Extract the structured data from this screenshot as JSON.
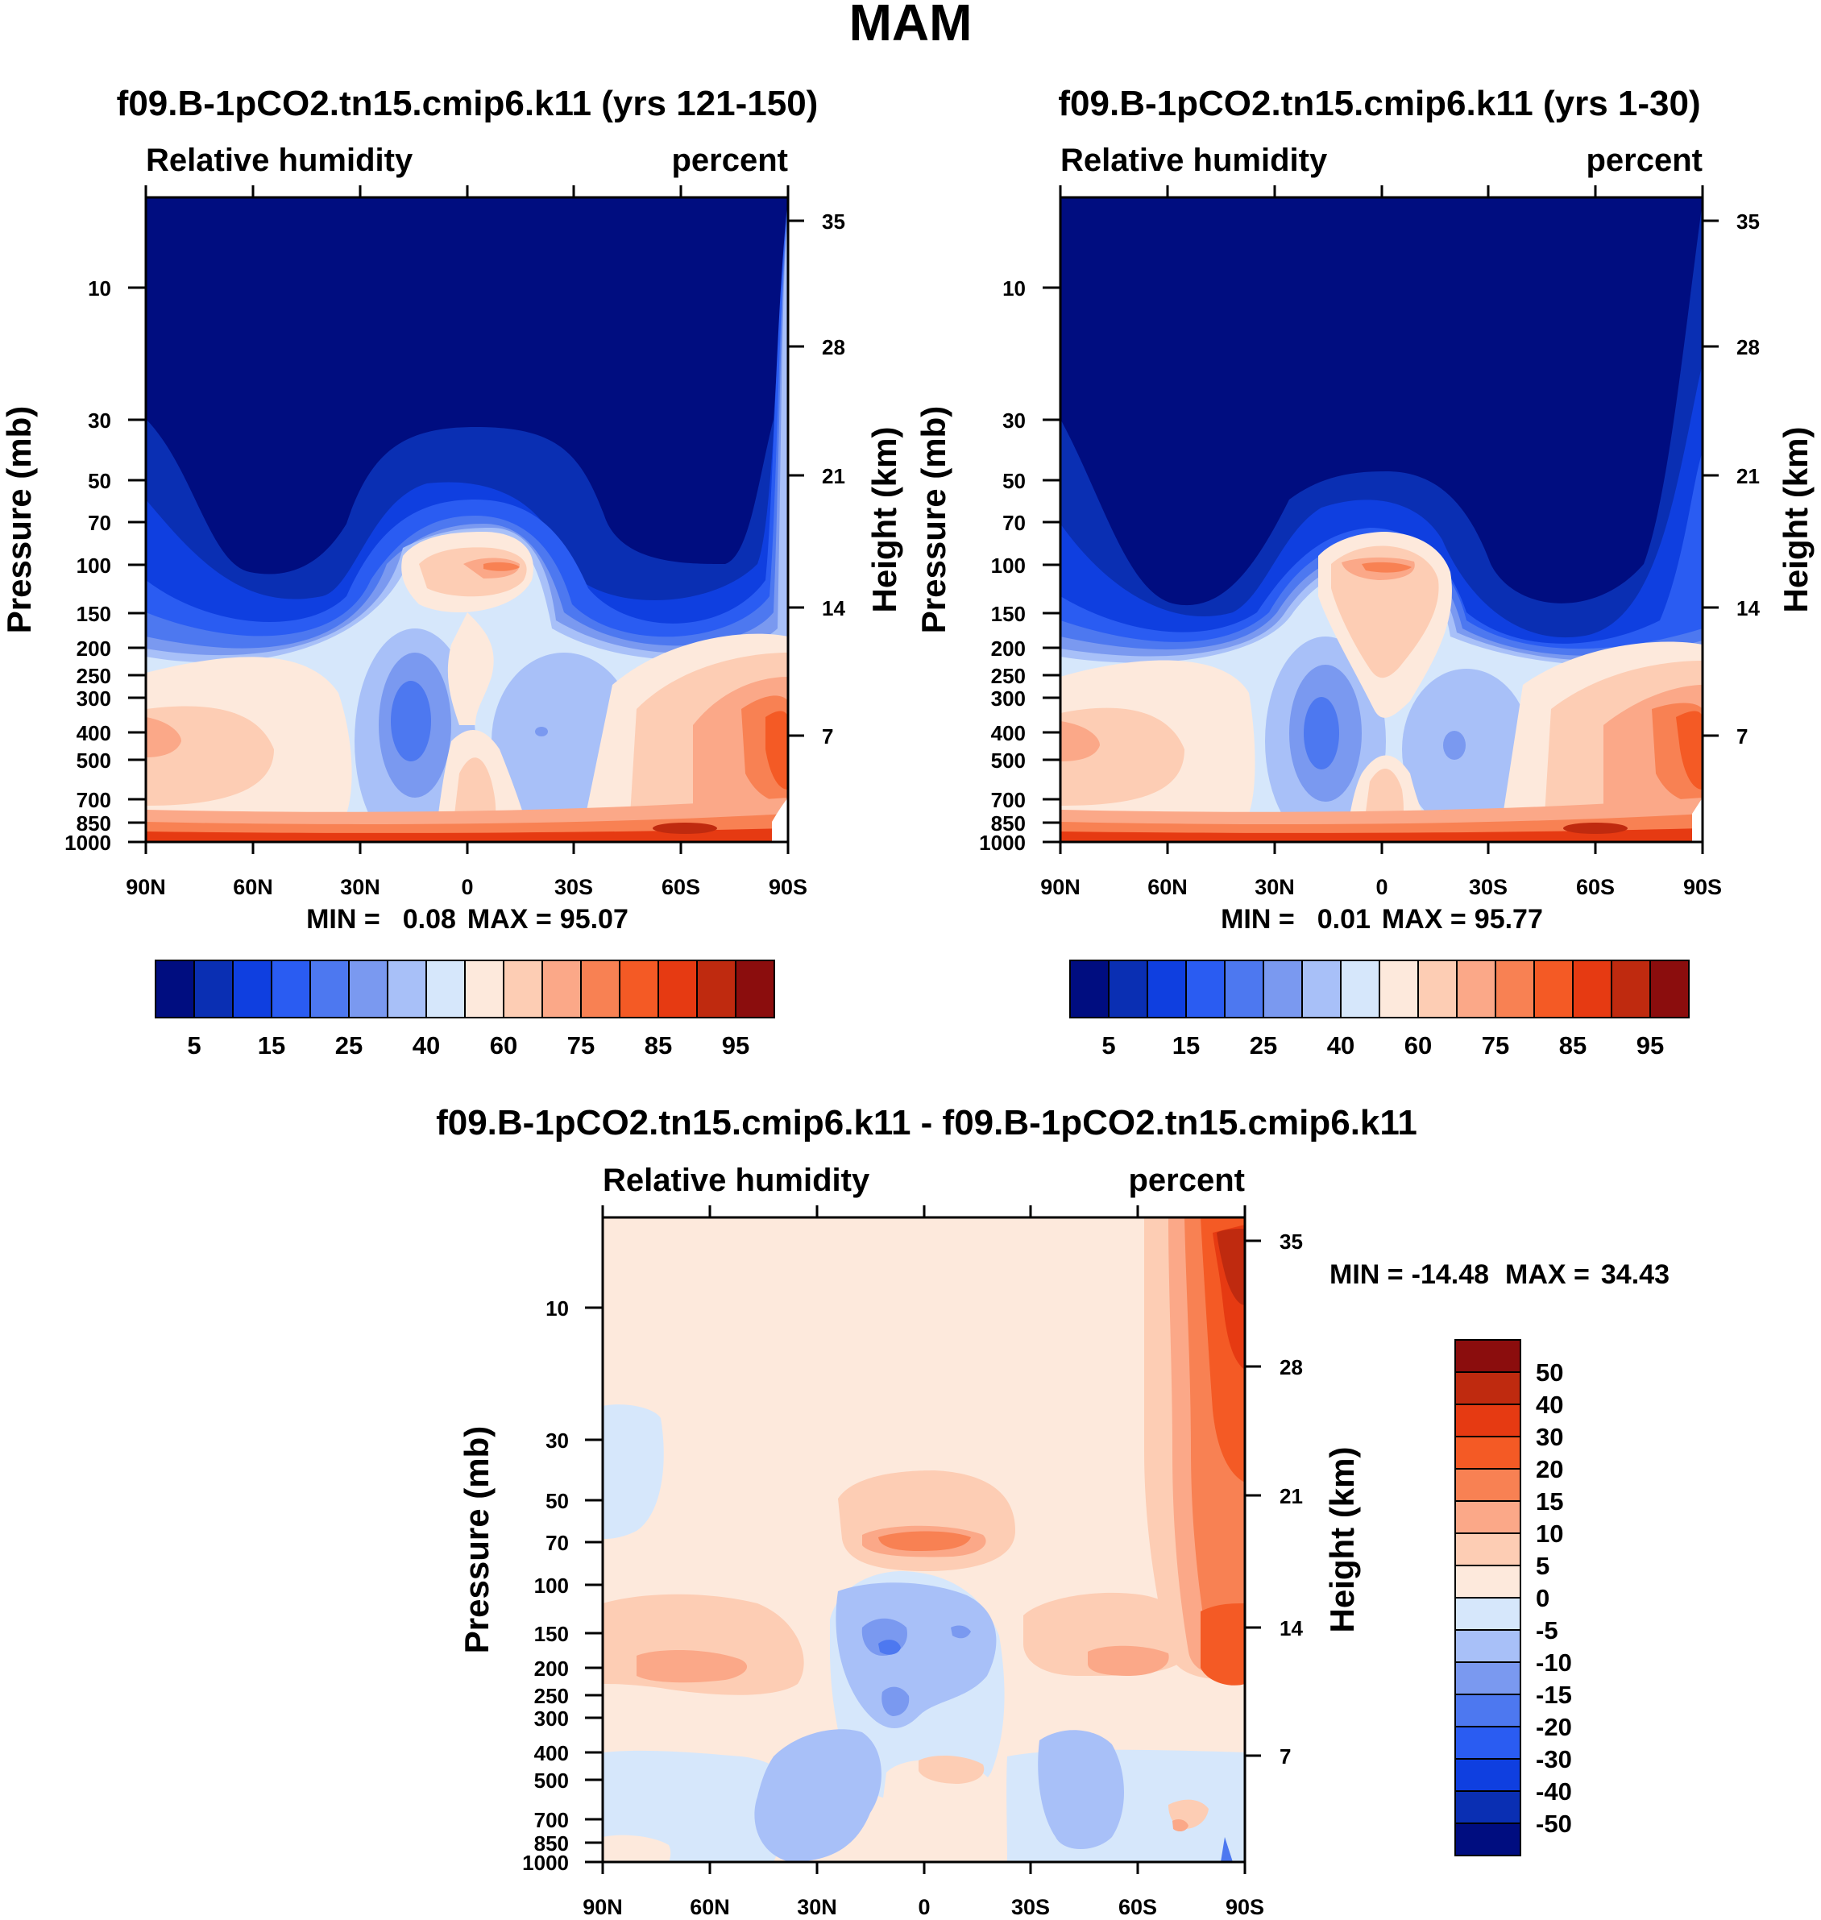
{
  "figure": {
    "title": "MAM"
  },
  "colors": {
    "absolute_levels": [
      "#000d80",
      "#0a2fb3",
      "#0f3fe0",
      "#2a5cf2",
      "#4d78f0",
      "#7a99f0",
      "#a8c0f8",
      "#d6e7fb",
      "#fde9dc",
      "#fdcdb4",
      "#fba888",
      "#f88153",
      "#f45a25",
      "#e63a12",
      "#bf2a0f",
      "#8b0d0d"
    ],
    "diff_levels": [
      "#000d80",
      "#0a2fb3",
      "#0f3fe0",
      "#2a5cf2",
      "#4d78f0",
      "#7a99f0",
      "#a8c0f8",
      "#d6e7fb",
      "#fde9dc",
      "#fdcdb4",
      "#fba888",
      "#f88153",
      "#f45a25",
      "#e63a12",
      "#bf2a0f",
      "#8b0d0d"
    ]
  },
  "chart_data": [
    {
      "type": "heatmap",
      "id": "panel_left",
      "title": "f09.B-1pCO2.tn15.cmip6.k11 (yrs 121-150)",
      "left_label": "Relative humidity",
      "right_label": "percent",
      "ylabel": "Pressure (mb)",
      "y2label": "Height (km)",
      "x_ticks": [
        "90N",
        "60N",
        "30N",
        "0",
        "30S",
        "60S",
        "90S"
      ],
      "y_ticks": [
        "10",
        "30",
        "50",
        "70",
        "100",
        "150",
        "200",
        "250",
        "300",
        "400",
        "500",
        "700",
        "850",
        "1000"
      ],
      "y2_ticks": [
        "35",
        "28",
        "21",
        "14",
        "7"
      ],
      "min_max": {
        "min_label": "MIN =",
        "min": "0.08",
        "max_label": "MAX =",
        "max": "95.07"
      },
      "colorbar_labels": [
        "5",
        "15",
        "25",
        "40",
        "60",
        "75",
        "85",
        "95"
      ]
    },
    {
      "type": "heatmap",
      "id": "panel_right",
      "title": "f09.B-1pCO2.tn15.cmip6.k11 (yrs 1-30)",
      "left_label": "Relative humidity",
      "right_label": "percent",
      "ylabel": "Pressure (mb)",
      "y2label": "Height (km)",
      "x_ticks": [
        "90N",
        "60N",
        "30N",
        "0",
        "30S",
        "60S",
        "90S"
      ],
      "y_ticks": [
        "10",
        "30",
        "50",
        "70",
        "100",
        "150",
        "200",
        "250",
        "300",
        "400",
        "500",
        "700",
        "850",
        "1000"
      ],
      "y2_ticks": [
        "35",
        "28",
        "21",
        "14",
        "7"
      ],
      "min_max": {
        "min_label": "MIN =",
        "min": "0.01",
        "max_label": "MAX =",
        "max": "95.77"
      },
      "colorbar_labels": [
        "5",
        "15",
        "25",
        "40",
        "60",
        "75",
        "85",
        "95"
      ]
    },
    {
      "type": "heatmap",
      "id": "panel_diff",
      "title": "f09.B-1pCO2.tn15.cmip6.k11 - f09.B-1pCO2.tn15.cmip6.k11",
      "left_label": "Relative humidity",
      "right_label": "percent",
      "ylabel": "Pressure (mb)",
      "y2label": "Height (km)",
      "x_ticks": [
        "90N",
        "60N",
        "30N",
        "0",
        "30S",
        "60S",
        "90S"
      ],
      "y_ticks": [
        "10",
        "30",
        "50",
        "70",
        "100",
        "150",
        "200",
        "250",
        "300",
        "400",
        "500",
        "700",
        "850",
        "1000"
      ],
      "y2_ticks": [
        "35",
        "28",
        "21",
        "14",
        "7"
      ],
      "min_max": {
        "min_label": "MIN =",
        "min": "-14.48",
        "max_label": "MAX =",
        "max": "34.43"
      },
      "colorbar_labels": [
        "50",
        "40",
        "30",
        "20",
        "15",
        "10",
        "5",
        "0",
        "-5",
        "-10",
        "-15",
        "-20",
        "-30",
        "-40",
        "-50"
      ]
    }
  ]
}
